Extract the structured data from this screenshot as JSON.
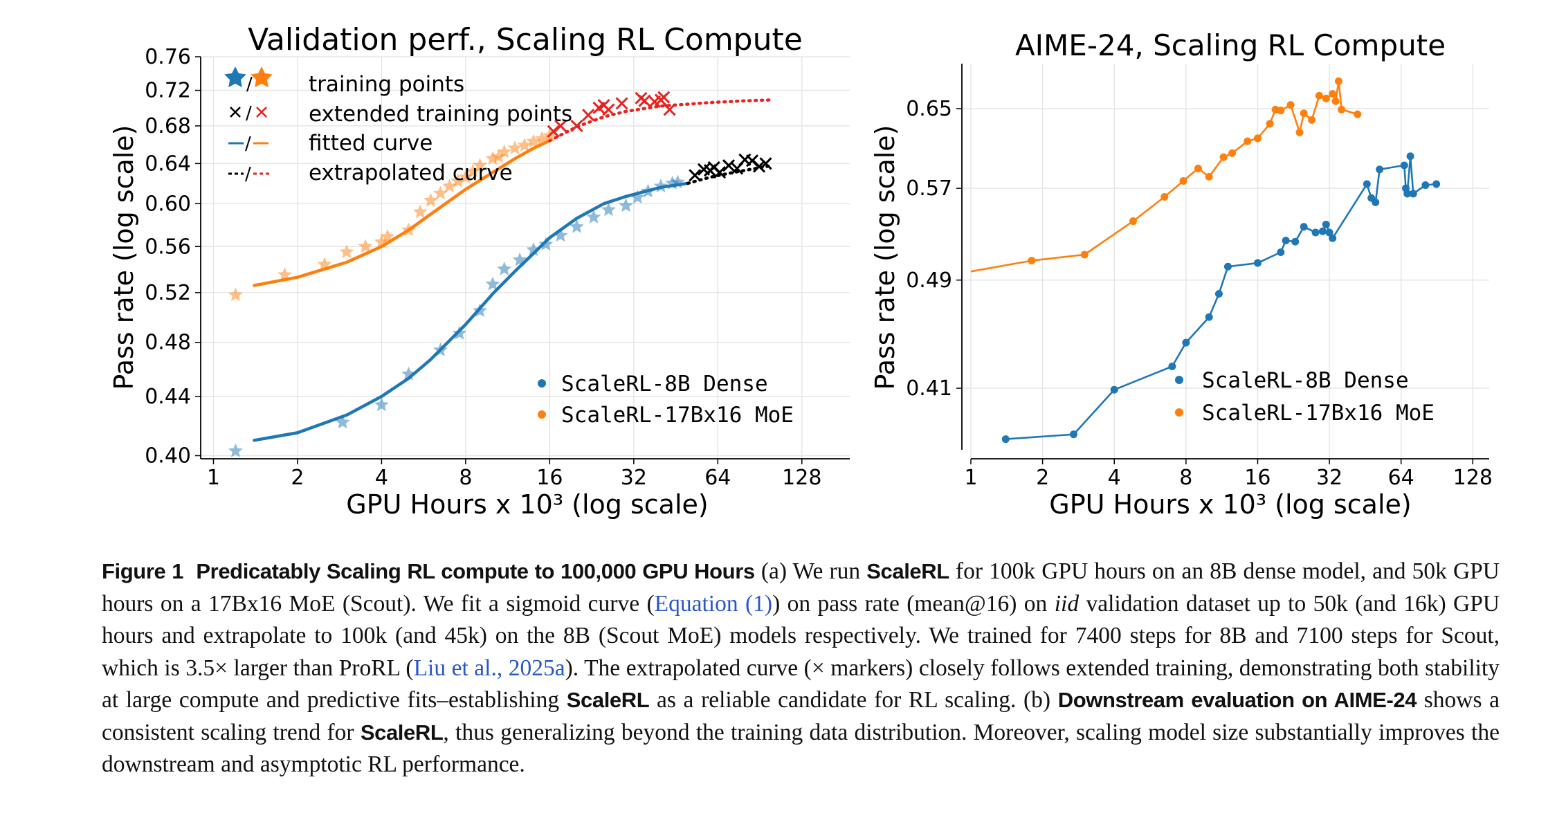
{
  "chart_data": [
    {
      "type": "scatter",
      "title": "Validation perf., Scaling RL Compute",
      "xlabel": "GPU Hours x 10³ (log scale)",
      "ylabel": "Pass rate (log scale)",
      "xscale": "log2",
      "yscale": "log",
      "xlim": [
        0.9,
        190
      ],
      "ylim": [
        0.398,
        0.76
      ],
      "xticks": [
        1,
        2,
        4,
        8,
        16,
        32,
        64,
        128
      ],
      "xtick_labels": [
        "1",
        "2",
        "4",
        "8",
        "16",
        "32",
        "64",
        "128"
      ],
      "yticks": [
        0.4,
        0.44,
        0.48,
        0.52,
        0.56,
        0.6,
        0.64,
        0.68,
        0.72,
        0.76
      ],
      "ytick_labels": [
        "0.40",
        "0.44",
        "0.48",
        "0.52",
        "0.56",
        "0.60",
        "0.64",
        "0.68",
        "0.72",
        "0.76"
      ],
      "grid": true,
      "marker_legend": {
        "position": "top-left",
        "entries": [
          {
            "symbol": "★/★",
            "label": "training points"
          },
          {
            "symbol": "×/×",
            "label": "extended training points"
          },
          {
            "symbol": "—/—",
            "label": "fitted curve"
          },
          {
            "symbol": "--/--",
            "label": "extrapolated curve"
          }
        ]
      },
      "series_legend": {
        "position": "bottom-right",
        "entries": [
          {
            "label": "ScaleRL-8B Dense",
            "color": "#1f77b4"
          },
          {
            "label": "ScaleRL-17Bx16 MoE",
            "color": "#ff7f0e"
          }
        ]
      },
      "series": [
        {
          "name": "ScaleRL-8B Dense",
          "color": "#1f77b4",
          "training_points": {
            "x": [
              1.2,
              2.9,
              4.0,
              5.0,
              6.5,
              7.6,
              9.0,
              10.0,
              11.0,
              12.5,
              14.0,
              15.5,
              17.5,
              20.0,
              23.0,
              26.0,
              30.0,
              33.0,
              36.0,
              40.0,
              44.0,
              46.0
            ],
            "y": [
              0.403,
              0.422,
              0.434,
              0.456,
              0.474,
              0.487,
              0.505,
              0.527,
              0.54,
              0.548,
              0.557,
              0.562,
              0.57,
              0.578,
              0.587,
              0.594,
              0.598,
              0.606,
              0.612,
              0.617,
              0.62,
              0.621
            ]
          },
          "fitted_curve": {
            "x": [
              1.4,
              2,
              3,
              4,
              5,
              6,
              8,
              10,
              12,
              16,
              20,
              25,
              30,
              40,
              50
            ],
            "y": [
              0.41,
              0.415,
              0.427,
              0.44,
              0.453,
              0.467,
              0.494,
              0.519,
              0.538,
              0.568,
              0.586,
              0.6,
              0.607,
              0.616,
              0.62
            ]
          },
          "extrapolated_curve": {
            "x": [
              50,
              60,
              70,
              80,
              100
            ],
            "y": [
              0.62,
              0.626,
              0.63,
              0.633,
              0.638
            ]
          },
          "extended_points": {
            "x": [
              53,
              57,
              60,
              62,
              65,
              70,
              75,
              80,
              85,
              90,
              95
            ],
            "y": [
              0.628,
              0.634,
              0.633,
              0.636,
              0.631,
              0.638,
              0.635,
              0.644,
              0.643,
              0.637,
              0.64
            ]
          }
        },
        {
          "name": "ScaleRL-17Bx16 MoE",
          "color": "#ff7f0e",
          "training_points": {
            "x": [
              1.2,
              1.8,
              2.5,
              3.0,
              3.5,
              4.0,
              4.2,
              5.0,
              5.5,
              6.0,
              6.5,
              7.0,
              7.5,
              8.0,
              8.5,
              9.0,
              10.0,
              10.5,
              11.0,
              12.0,
              13.0,
              14.0,
              15.0,
              16.0
            ],
            "y": [
              0.518,
              0.535,
              0.544,
              0.555,
              0.56,
              0.564,
              0.569,
              0.575,
              0.592,
              0.603,
              0.61,
              0.617,
              0.622,
              0.626,
              0.632,
              0.638,
              0.645,
              0.647,
              0.652,
              0.656,
              0.659,
              0.663,
              0.666,
              0.669
            ]
          },
          "fitted_curve": {
            "x": [
              1.4,
              2,
              3,
              4,
              5,
              6,
              8,
              10,
              12,
              14,
              16
            ],
            "y": [
              0.526,
              0.533,
              0.546,
              0.56,
              0.575,
              0.59,
              0.614,
              0.631,
              0.645,
              0.656,
              0.664
            ]
          },
          "extrapolated_curve": {
            "x": [
              16,
              20,
              25,
              30,
              40,
              60,
              80,
              100
            ],
            "y": [
              0.664,
              0.679,
              0.69,
              0.696,
              0.702,
              0.706,
              0.708,
              0.709
            ]
          },
          "extended_points": {
            "x": [
              16.5,
              17.5,
              20,
              22,
              24,
              25,
              26,
              29,
              34,
              35,
              38,
              40,
              41,
              43
            ],
            "y": [
              0.674,
              0.68,
              0.68,
              0.692,
              0.7,
              0.703,
              0.698,
              0.705,
              0.711,
              0.708,
              0.707,
              0.709,
              0.712,
              0.698
            ]
          }
        }
      ]
    },
    {
      "type": "line",
      "title": "AIME-24, Scaling RL Compute",
      "xlabel": "GPU Hours x 10³ (log scale)",
      "ylabel": "Pass rate (log scale)",
      "xscale": "log2",
      "yscale": "log",
      "xlim": [
        1,
        150
      ],
      "ylim": [
        0.365,
        0.7
      ],
      "xticks": [
        1,
        2,
        4,
        8,
        16,
        32,
        64,
        128
      ],
      "xtick_labels": [
        "1",
        "2",
        "4",
        "8",
        "16",
        "32",
        "64",
        "128"
      ],
      "yticks": [
        0.41,
        0.49,
        0.57,
        0.65
      ],
      "ytick_labels": [
        "0.41",
        "0.49",
        "0.57",
        "0.65"
      ],
      "grid": true,
      "legend": {
        "position": "lower-right",
        "entries": [
          {
            "label": "ScaleRL-8B Dense",
            "color": "#1f77b4"
          },
          {
            "label": "ScaleRL-17Bx16 MoE",
            "color": "#ff7f0e"
          }
        ]
      },
      "series": [
        {
          "name": "ScaleRL-8B Dense",
          "color": "#1f77b4",
          "x": [
            1.4,
            2.7,
            4.0,
            7.0,
            8.0,
            10.0,
            11.0,
            12.0,
            16.0,
            20.0,
            21.0,
            23.0,
            25.0,
            28.0,
            30.0,
            31.0,
            32.0,
            33.0,
            46.0,
            48.0,
            50.0,
            52.0,
            66.0,
            67.0,
            68.0,
            70.0,
            72.0,
            81.0,
            90.0
          ],
          "y": [
            0.377,
            0.38,
            0.409,
            0.425,
            0.442,
            0.461,
            0.479,
            0.501,
            0.504,
            0.513,
            0.523,
            0.522,
            0.535,
            0.53,
            0.531,
            0.537,
            0.53,
            0.525,
            0.574,
            0.561,
            0.557,
            0.588,
            0.592,
            0.57,
            0.565,
            0.601,
            0.565,
            0.573,
            0.574
          ]
        },
        {
          "name": "ScaleRL-17Bx16 MoE",
          "color": "#ff7f0e",
          "x": [
            1.0,
            1.8,
            3.0,
            4.8,
            6.5,
            7.8,
            9.0,
            10.0,
            11.5,
            12.5,
            14.5,
            16.0,
            18.0,
            19.0,
            20.0,
            22.0,
            24.0,
            25.0,
            27.0,
            29.0,
            31.0,
            33.0,
            34.0,
            35.0,
            36.0,
            42.0
          ],
          "y": [
            0.497,
            0.506,
            0.511,
            0.54,
            0.562,
            0.577,
            0.589,
            0.581,
            0.6,
            0.604,
            0.616,
            0.619,
            0.634,
            0.649,
            0.648,
            0.654,
            0.625,
            0.645,
            0.638,
            0.664,
            0.661,
            0.666,
            0.658,
            0.68,
            0.649,
            0.644
          ]
        }
      ]
    }
  ],
  "caption": {
    "label": "Figure 1",
    "label_title": "Predicatably Scaling RL compute to 100,000 GPU Hours",
    "t01": "(a) We run",
    "b01": "ScaleRL",
    "t02": "for 100k GPU hours on an 8B dense model, and 50k GPU hours on a 17Bx16 MoE (Scout). We fit a sigmoid curve (",
    "link1": "Equation (1)",
    "t03": ") on pass rate (mean@16) on",
    "i01": "iid",
    "t04": "validation dataset up to 50k (and 16k) GPU hours and extrapolate to 100k (and 45k) on the 8B (Scout MoE) models respectively. We trained for 7400 steps for 8B and 7100 steps for Scout, which is 3.5× larger than ProRL (",
    "link2": "Liu et al.,",
    "link3": "2025a",
    "t05": "). The extrapolated curve (× markers) closely follows extended training, demonstrating both stability at large compute and predictive fits–establishing",
    "b02": "ScaleRL",
    "t06": "as a reliable candidate for RL scaling. (b)",
    "b03": "Downstream evaluation on AIME-24",
    "t07": "shows a consistent scaling trend for",
    "b04": "ScaleRL",
    "t08": ", thus generalizing beyond the training data distribution. Moreover, scaling model size substantially improves the downstream and asymptotic RL performance."
  }
}
